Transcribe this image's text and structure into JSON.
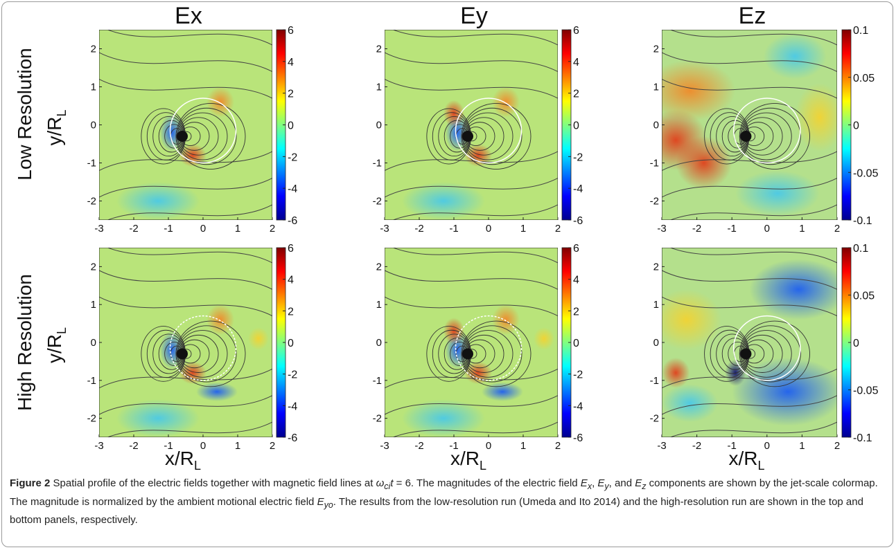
{
  "columns": [
    "Ex",
    "Ey",
    "Ez"
  ],
  "rows": [
    "Low Resolution",
    "High Resolution"
  ],
  "y_label": {
    "main": "y/R",
    "sub": "L"
  },
  "x_label": {
    "main": "x/R",
    "sub": "L"
  },
  "x_ticks": [
    "-3",
    "-2",
    "-1",
    "0",
    "1",
    "2"
  ],
  "y_ticks": [
    "2",
    "1",
    "0",
    "-1",
    "-2"
  ],
  "colorbar_ticks": {
    "Ex": [
      "6",
      "4",
      "2",
      "0",
      "-2",
      "-4",
      "-6"
    ],
    "Ey": [
      "6",
      "4",
      "2",
      "0",
      "-2",
      "-4",
      "-6"
    ],
    "Ez": [
      "0.1",
      "0.05",
      "0",
      "-0.05",
      "-0.1"
    ]
  },
  "caption": {
    "label": "Figure 2",
    "runs": [
      " Spatial profile of the electric fields together with magnetic field lines at ",
      {
        "italic": "ω",
        "sub": "ci"
      },
      {
        "italic": "t"
      },
      " = 6. The magnitudes of the electric field ",
      {
        "italic": "E",
        "sub": "x"
      },
      ", ",
      {
        "italic": "E",
        "sub": "y"
      },
      ", and ",
      {
        "italic": "E",
        "sub": "z"
      },
      " components are shown by the jet-scale colormap. The magnitude is normalized by the ambient motional electric field ",
      {
        "italic": "E",
        "sub": "yo"
      },
      ". The results from the low-resolution run (Umeda and Ito 2014) and the high-resolution run are shown in the top and bottom panels, respectively."
    ]
  }
}
